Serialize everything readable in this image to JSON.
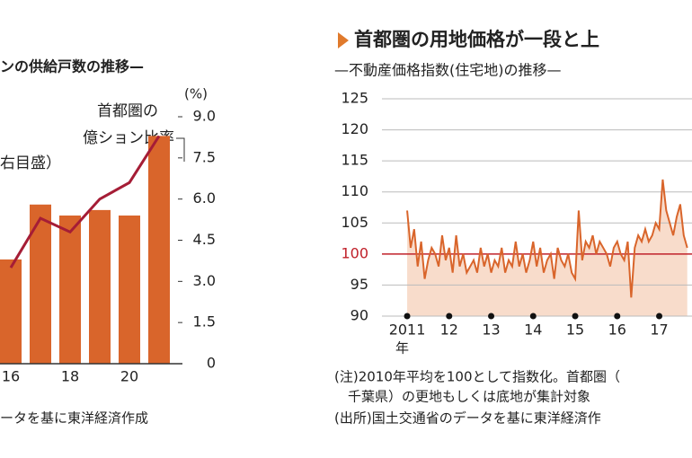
{
  "chart_data": [
    {
      "type": "combo",
      "title": "ンの供給戸数の推移—",
      "annotations": [
        "首都圏の",
        "億ション比率",
        "右目盛）"
      ],
      "y_unit": "(%)",
      "categories": [
        "16",
        null,
        "18",
        null,
        "20",
        null
      ],
      "series": [
        {
          "type": "bar",
          "color": "#d9652b",
          "values": [
            3.8,
            5.8,
            5.4,
            5.6,
            5.4,
            8.3
          ]
        },
        {
          "type": "line",
          "color": "#a51d36",
          "values": [
            3.5,
            5.3,
            4.8,
            6.0,
            6.6,
            8.3
          ]
        }
      ],
      "ylim": [
        0,
        9
      ],
      "yticks": [
        {
          "value": 9,
          "label": "9.0"
        },
        7.5,
        {
          "value": 6,
          "label": "6.0"
        },
        4.5,
        {
          "value": 3,
          "label": "3.0"
        },
        1.5,
        0
      ],
      "notes": [
        "ータを基に東洋経済作成"
      ]
    },
    {
      "type": "area",
      "title": "首都圏の用地価格が一段と上",
      "subtitle": "—不動産価格指数(住宅地)の推移—",
      "x_unit": "年",
      "color": "#d9652b",
      "fill": "#f8dccb",
      "reference": 100,
      "reference_color": "#c0202a",
      "x": [
        2011,
        2011.083,
        2011.167,
        2011.25,
        2011.333,
        2011.417,
        2011.5,
        2011.583,
        2011.667,
        2011.75,
        2011.833,
        2011.917,
        2012,
        2012.083,
        2012.167,
        2012.25,
        2012.333,
        2012.417,
        2012.5,
        2012.583,
        2012.667,
        2012.75,
        2012.833,
        2012.917,
        2013,
        2013.083,
        2013.167,
        2013.25,
        2013.333,
        2013.417,
        2013.5,
        2013.583,
        2013.667,
        2013.75,
        2013.833,
        2013.917,
        2014,
        2014.083,
        2014.167,
        2014.25,
        2014.333,
        2014.417,
        2014.5,
        2014.583,
        2014.667,
        2014.75,
        2014.833,
        2014.917,
        2015,
        2015.083,
        2015.167,
        2015.25,
        2015.333,
        2015.417,
        2015.5,
        2015.583,
        2015.667,
        2015.75,
        2015.833,
        2015.917,
        2016,
        2016.083,
        2016.167,
        2016.25,
        2016.333,
        2016.417,
        2016.5,
        2016.583,
        2016.667,
        2016.75,
        2016.833,
        2016.917,
        2017,
        2017.083,
        2017.167,
        2017.25,
        2017.333,
        2017.417,
        2017.5,
        2017.583,
        2017.667
      ],
      "values": [
        107,
        101,
        104,
        98,
        102,
        96,
        99,
        101,
        100,
        98,
        103,
        99,
        101,
        97,
        103,
        98,
        100,
        97,
        98,
        99,
        97,
        101,
        98,
        100,
        97,
        99,
        98,
        101,
        97,
        99,
        98,
        102,
        98,
        100,
        97,
        99,
        102,
        98,
        101,
        97,
        99,
        100,
        96,
        101,
        99,
        98,
        100,
        97,
        96,
        107,
        99,
        102,
        101,
        103,
        100,
        102,
        101,
        100,
        98,
        101,
        102,
        100,
        99,
        102,
        93,
        101,
        103,
        102,
        104,
        102,
        103,
        105,
        104,
        112,
        107,
        105,
        103,
        106,
        108,
        103,
        101
      ],
      "xlim": [
        2010.4,
        2017.78
      ],
      "xticks": [
        2011,
        {
          "value": 2012,
          "label": "12"
        },
        {
          "value": 2013,
          "label": "13"
        },
        {
          "value": 2014,
          "label": "14"
        },
        {
          "value": 2015,
          "label": "15"
        },
        {
          "value": 2016,
          "label": "16"
        },
        {
          "value": 2017,
          "label": "17"
        }
      ],
      "ylim": [
        90,
        125
      ],
      "yticks": [
        125,
        120,
        115,
        110,
        105,
        100,
        95,
        90
      ],
      "grid": true,
      "notes": [
        "(注)2010年平均を100として指数化。首都圏（",
        "千葉県）の更地もしくは底地が集計対象",
        "(出所)国土交通省のデータを基に東洋経済作"
      ]
    }
  ]
}
